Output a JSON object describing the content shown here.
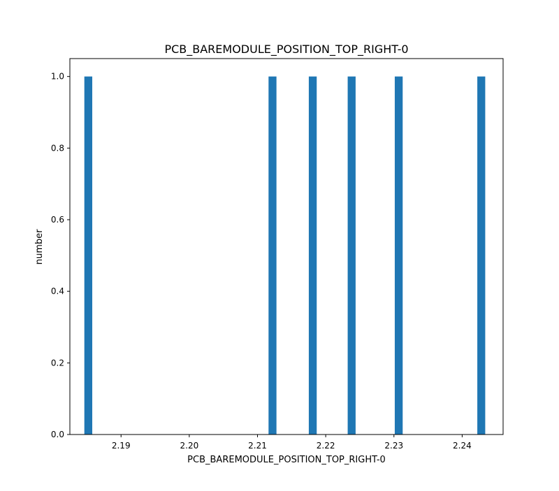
{
  "chart_data": {
    "type": "bar",
    "title": "PCB_BAREMODULE_POSITION_TOP_RIGHT-0",
    "xlabel": "PCB_BAREMODULE_POSITION_TOP_RIGHT-0",
    "ylabel": "number",
    "xlim": [
      2.1825,
      2.246
    ],
    "ylim": [
      0,
      1.05
    ],
    "bin_width": 0.00116,
    "bars": [
      {
        "x": 2.1852,
        "value": 1
      },
      {
        "x": 2.2122,
        "value": 1
      },
      {
        "x": 2.2181,
        "value": 1
      },
      {
        "x": 2.2238,
        "value": 1
      },
      {
        "x": 2.2307,
        "value": 1
      },
      {
        "x": 2.2428,
        "value": 1
      }
    ],
    "xticks": [
      {
        "value": 2.19,
        "label": "2.19"
      },
      {
        "value": 2.2,
        "label": "2.20"
      },
      {
        "value": 2.21,
        "label": "2.21"
      },
      {
        "value": 2.22,
        "label": "2.22"
      },
      {
        "value": 2.23,
        "label": "2.23"
      },
      {
        "value": 2.24,
        "label": "2.24"
      }
    ],
    "yticks": [
      {
        "value": 0.0,
        "label": "0.0"
      },
      {
        "value": 0.2,
        "label": "0.2"
      },
      {
        "value": 0.4,
        "label": "0.4"
      },
      {
        "value": 0.6,
        "label": "0.6"
      },
      {
        "value": 0.8,
        "label": "0.8"
      },
      {
        "value": 1.0,
        "label": "1.0"
      }
    ],
    "bar_color": "#1f77b4",
    "grid": false
  }
}
